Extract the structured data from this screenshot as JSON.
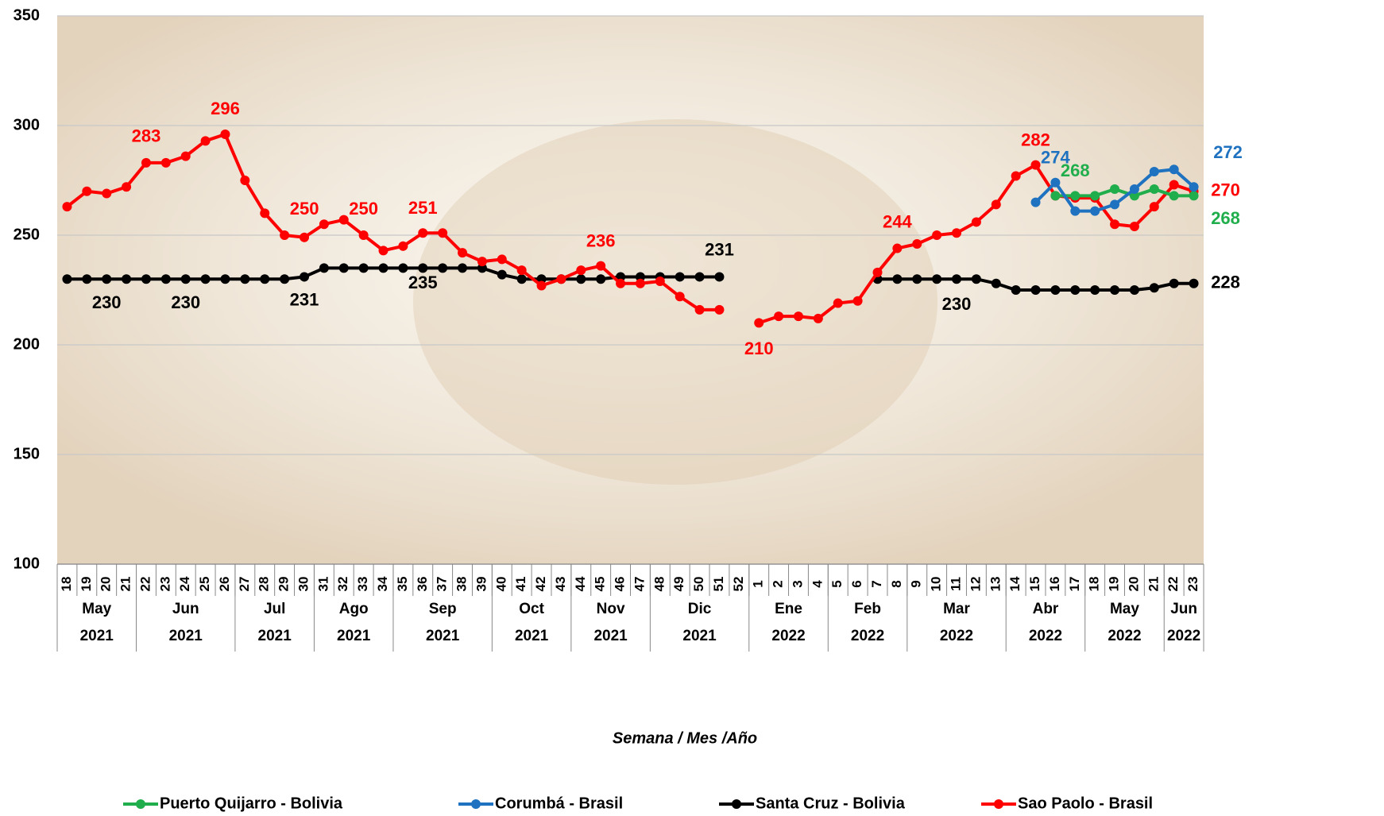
{
  "chart_data": {
    "type": "line",
    "x_label": "Semana / Mes /Año",
    "categories": [
      "18",
      "19",
      "20",
      "21",
      "22",
      "23",
      "24",
      "25",
      "26",
      "27",
      "28",
      "29",
      "30",
      "31",
      "32",
      "33",
      "34",
      "35",
      "36",
      "37",
      "38",
      "39",
      "40",
      "41",
      "42",
      "43",
      "44",
      "45",
      "46",
      "47",
      "48",
      "49",
      "50",
      "51",
      "52",
      "1",
      "2",
      "3",
      "4",
      "5",
      "6",
      "7",
      "8",
      "9",
      "10",
      "11",
      "12",
      "13",
      "14",
      "15",
      "16",
      "17",
      "18",
      "19",
      "20",
      "21",
      "22",
      "23"
    ],
    "months": [
      "May",
      "May",
      "May",
      "May",
      "Jun",
      "Jun",
      "Jun",
      "Jun",
      "Jun",
      "Jul",
      "Jul",
      "Jul",
      "Jul",
      "Ago",
      "Ago",
      "Ago",
      "Ago",
      "Sep",
      "Sep",
      "Sep",
      "Sep",
      "Sep",
      "Oct",
      "Oct",
      "Oct",
      "Oct",
      "Nov",
      "Nov",
      "Nov",
      "Nov",
      "Dic",
      "Dic",
      "Dic",
      "Dic",
      "Dic",
      "Ene",
      "Ene",
      "Ene",
      "Ene",
      "Feb",
      "Feb",
      "Feb",
      "Feb",
      "Mar",
      "Mar",
      "Mar",
      "Mar",
      "Mar",
      "Abr",
      "Abr",
      "Abr",
      "Abr",
      "May",
      "May",
      "May",
      "May",
      "Jun",
      "Jun"
    ],
    "years": [
      "2021",
      "2021",
      "2021",
      "2021",
      "2021",
      "2021",
      "2021",
      "2021",
      "2021",
      "2021",
      "2021",
      "2021",
      "2021",
      "2021",
      "2021",
      "2021",
      "2021",
      "2021",
      "2021",
      "2021",
      "2021",
      "2021",
      "2021",
      "2021",
      "2021",
      "2021",
      "2021",
      "2021",
      "2021",
      "2021",
      "2021",
      "2021",
      "2021",
      "2021",
      "2021",
      "2022",
      "2022",
      "2022",
      "2022",
      "2022",
      "2022",
      "2022",
      "2022",
      "2022",
      "2022",
      "2022",
      "2022",
      "2022",
      "2022",
      "2022",
      "2022",
      "2022",
      "2022",
      "2022",
      "2022",
      "2022",
      "2022",
      "2022"
    ],
    "ylim": [
      100,
      350
    ],
    "yticks": [
      100,
      150,
      200,
      250,
      300,
      350
    ],
    "grid": true,
    "series": [
      {
        "name": "Puerto Quijarro - Bolivia",
        "color": "#1fae4b",
        "values": [
          null,
          null,
          null,
          null,
          null,
          null,
          null,
          null,
          null,
          null,
          null,
          null,
          null,
          null,
          null,
          null,
          null,
          null,
          null,
          null,
          null,
          null,
          null,
          null,
          null,
          null,
          null,
          null,
          null,
          null,
          null,
          null,
          null,
          null,
          null,
          null,
          null,
          null,
          null,
          null,
          null,
          null,
          null,
          null,
          null,
          null,
          null,
          null,
          null,
          null,
          268,
          268,
          268,
          271,
          268,
          271,
          268,
          268
        ]
      },
      {
        "name": "Corumbá - Brasil",
        "color": "#1f72c0",
        "values": [
          null,
          null,
          null,
          null,
          null,
          null,
          null,
          null,
          null,
          null,
          null,
          null,
          null,
          null,
          null,
          null,
          null,
          null,
          null,
          null,
          null,
          null,
          null,
          null,
          null,
          null,
          null,
          null,
          null,
          null,
          null,
          null,
          null,
          null,
          null,
          null,
          null,
          null,
          null,
          null,
          null,
          null,
          null,
          null,
          null,
          null,
          null,
          null,
          null,
          265,
          274,
          261,
          261,
          264,
          271,
          279,
          280,
          272
        ]
      },
      {
        "name": "Santa Cruz - Bolivia",
        "color": "#000000",
        "values": [
          230,
          230,
          230,
          230,
          230,
          230,
          230,
          230,
          230,
          230,
          230,
          230,
          231,
          235,
          235,
          235,
          235,
          235,
          235,
          235,
          235,
          235,
          232,
          230,
          230,
          230,
          230,
          230,
          231,
          231,
          231,
          231,
          231,
          231,
          null,
          null,
          null,
          null,
          null,
          null,
          null,
          230,
          230,
          230,
          230,
          230,
          230,
          228,
          225,
          225,
          225,
          225,
          225,
          225,
          225,
          226,
          228,
          228
        ]
      },
      {
        "name": "Sao Paolo - Brasil",
        "color": "#ff0000",
        "values": [
          263,
          270,
          269,
          272,
          283,
          283,
          286,
          293,
          296,
          275,
          260,
          250,
          249,
          255,
          257,
          250,
          243,
          245,
          251,
          251,
          242,
          238,
          239,
          234,
          227,
          230,
          234,
          236,
          228,
          228,
          229,
          222,
          216,
          216,
          null,
          210,
          213,
          213,
          212,
          219,
          220,
          233,
          244,
          246,
          250,
          251,
          256,
          264,
          277,
          282,
          268,
          267,
          267,
          255,
          254,
          263,
          273,
          270
        ]
      }
    ]
  }
}
